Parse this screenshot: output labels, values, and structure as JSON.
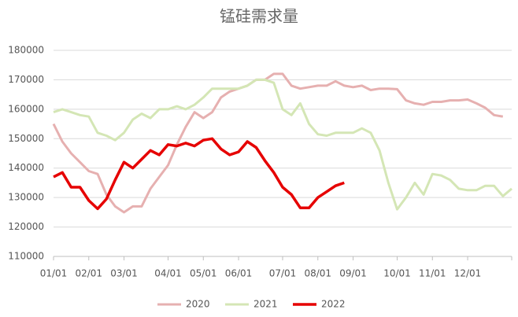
{
  "chart_data": {
    "type": "line",
    "title": "锰硅需求量",
    "categories": [
      "01/01",
      null,
      null,
      null,
      "02/01",
      null,
      null,
      null,
      "03/01",
      null,
      null,
      null,
      null,
      "04/01",
      null,
      null,
      null,
      "05/01",
      null,
      null,
      null,
      "06/01",
      null,
      null,
      null,
      null,
      "07/01",
      null,
      null,
      null,
      "08/01",
      null,
      null,
      null,
      "09/01",
      null,
      null,
      null,
      null,
      "10/01",
      null,
      null,
      null,
      "11/01",
      null,
      null,
      null,
      "12/01",
      null,
      null,
      null,
      null,
      null
    ],
    "series": [
      {
        "name": "2020",
        "color": "#e6b0b0",
        "values": [
          155000,
          149000,
          145000,
          142000,
          139000,
          138000,
          131000,
          127000,
          125000,
          127000,
          127000,
          133000,
          137000,
          141000,
          148000,
          154000,
          159000,
          157000,
          159000,
          164000,
          166000,
          167000,
          168000,
          170000,
          170000,
          172000,
          172000,
          168000,
          167000,
          167500,
          168000,
          168000,
          169500,
          168000,
          167500,
          168000,
          166500,
          167000,
          167000,
          166800,
          163000,
          162000,
          161500,
          162500,
          162500,
          163000,
          163000,
          163300,
          162000,
          160500,
          158000,
          157500,
          null
        ]
      },
      {
        "name": "2021",
        "color": "#d4e6b5",
        "values": [
          159000,
          160000,
          159000,
          158000,
          157500,
          152000,
          151000,
          149500,
          152000,
          156500,
          158500,
          157000,
          160000,
          160000,
          161000,
          160000,
          161500,
          164000,
          167000,
          167000,
          167000,
          167000,
          168000,
          170000,
          170000,
          169000,
          160000,
          158000,
          162000,
          155000,
          151500,
          151000,
          152000,
          152000,
          152000,
          153500,
          152000,
          146000,
          135000,
          126000,
          130000,
          135000,
          131000,
          138000,
          137500,
          136000,
          133000,
          132500,
          132500,
          134000,
          134000,
          130500,
          133000
        ]
      },
      {
        "name": "2022",
        "color": "#e60000",
        "values": [
          137000,
          138500,
          133500,
          133500,
          129000,
          126200,
          129500,
          136000,
          142000,
          140000,
          143000,
          146000,
          144500,
          148000,
          147500,
          148500,
          147500,
          149500,
          150000,
          146500,
          144500,
          145500,
          149000,
          147000,
          142500,
          138500,
          133500,
          131000,
          126500,
          126500,
          130000,
          132000,
          134000,
          135000,
          null,
          null,
          null,
          null,
          null,
          null,
          null,
          null,
          null,
          null,
          null,
          null,
          null,
          null,
          null,
          null,
          null,
          null,
          null
        ]
      }
    ],
    "ylim": [
      110000,
      180000
    ],
    "yticks": [
      110000,
      120000,
      130000,
      140000,
      150000,
      160000,
      170000,
      180000
    ],
    "grid": true,
    "legend": "bottom"
  }
}
